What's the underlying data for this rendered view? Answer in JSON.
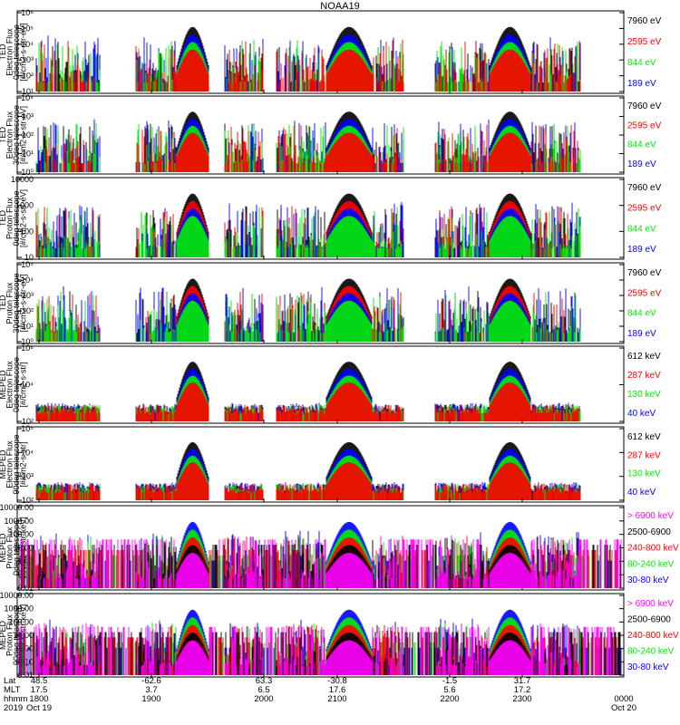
{
  "title": "NOAA19",
  "colors": {
    "black": "#000000",
    "red": "#ff0000",
    "green": "#00ee00",
    "blue": "#0000ff",
    "magenta": "#ff00ff"
  },
  "chart_data": [
    {
      "type": "scatter",
      "panel": "ted-electron-0deg",
      "ylabel": [
        "TED",
        "Electron Flux",
        "0deg telescope",
        "[#/cm2-s-str-eV]"
      ],
      "yscale": "log",
      "yticks": [
        "10¹",
        "10²",
        "10³",
        "10⁴",
        "10⁵",
        "10⁶"
      ],
      "legend": [
        {
          "name": "7960 eV",
          "color": "black"
        },
        {
          "name": "2595 eV",
          "color": "red"
        },
        {
          "name": "844 eV",
          "color": "green"
        },
        {
          "name": "189 eV",
          "color": "blue"
        }
      ]
    },
    {
      "type": "scatter",
      "panel": "ted-electron-30deg",
      "ylabel": [
        "TED",
        "Electron Flux",
        "30deg telescope",
        "[#/cm2-s-str-eV]"
      ],
      "yscale": "log",
      "yticks": [
        "10⁰",
        "10¹",
        "10²",
        "10³",
        "10⁴"
      ],
      "legend": [
        {
          "name": "7960 eV",
          "color": "black"
        },
        {
          "name": "2595 eV",
          "color": "red"
        },
        {
          "name": "844 eV",
          "color": "green"
        },
        {
          "name": "189 eV",
          "color": "blue"
        }
      ]
    },
    {
      "type": "scatter",
      "panel": "ted-proton-0deg",
      "ylabel": [
        "TED",
        "Proton Flux",
        "0deg telescope",
        "[#/cm2-s-str-eV]"
      ],
      "yscale": "log",
      "yticks": [
        "10",
        "100",
        "1000",
        "10000"
      ],
      "legend": [
        {
          "name": "7960 eV",
          "color": "black"
        },
        {
          "name": "2595 eV",
          "color": "red"
        },
        {
          "name": "844 eV",
          "color": "green"
        },
        {
          "name": "189 eV",
          "color": "blue"
        }
      ]
    },
    {
      "type": "scatter",
      "panel": "ted-proton-30deg",
      "ylabel": [
        "TED",
        "Proton Flux",
        "30deg telescope",
        "[#/cm2-s-str-eV]"
      ],
      "yscale": "log",
      "yticks": [
        "10⁰",
        "10¹",
        "10²",
        "10³",
        "10⁴",
        "10⁵"
      ],
      "legend": [
        {
          "name": "7960 eV",
          "color": "black"
        },
        {
          "name": "2595 eV",
          "color": "red"
        },
        {
          "name": "844 eV",
          "color": "green"
        },
        {
          "name": "189 eV",
          "color": "blue"
        }
      ]
    },
    {
      "type": "scatter",
      "panel": "meped-electron-0deg",
      "ylabel": [
        "MEPED",
        "Electron Flux",
        "0deg telescope",
        "[#/cm2-s-str]"
      ],
      "yscale": "log",
      "yticks": [
        "10²",
        "10⁴",
        "10⁶"
      ],
      "legend": [
        {
          "name": "612 keV",
          "color": "black"
        },
        {
          "name": "287 keV",
          "color": "red"
        },
        {
          "name": "130 keV",
          "color": "green"
        },
        {
          "name": "40 keV",
          "color": "blue"
        }
      ]
    },
    {
      "type": "scatter",
      "panel": "meped-electron-90deg",
      "ylabel": [
        "MEPED",
        "Electron Flux",
        "90deg telescope",
        "[#/cm2-s-str]"
      ],
      "yscale": "log",
      "yticks": [
        "10²",
        "10³",
        "10⁴",
        "10⁵"
      ],
      "legend": [
        {
          "name": "612 keV",
          "color": "black"
        },
        {
          "name": "287 keV",
          "color": "red"
        },
        {
          "name": "130 keV",
          "color": "green"
        },
        {
          "name": "40 keV",
          "color": "blue"
        }
      ]
    },
    {
      "type": "scatter",
      "panel": "meped-proton-0deg",
      "ylabel": [
        "MEPED",
        "Proton Flux",
        "0deg telescope",
        "[#/cm2-s-str-keV]"
      ],
      "yscale": "log",
      "yticks": [
        "0.01",
        "0.10",
        "1.00",
        "10.00",
        "100.00",
        "1000.00",
        "10000.00"
      ],
      "legend": [
        {
          "name": "> 6900 keV",
          "color": "magenta"
        },
        {
          "name": "2500-6900",
          "color": "black"
        },
        {
          "name": "240-800 keV",
          "color": "red"
        },
        {
          "name": "80-240 keV",
          "color": "green"
        },
        {
          "name": "30-80 keV",
          "color": "blue"
        }
      ]
    },
    {
      "type": "scatter",
      "panel": "meped-proton-90deg",
      "ylabel": [
        "MEPED",
        "Proton Flux",
        "90deg telescope",
        "[#/cm2-s-str-keV]"
      ],
      "yscale": "log",
      "yticks": [
        "0.01",
        "0.10",
        "1.00",
        "10.00",
        "100.00",
        "1000.00",
        "10000.00"
      ],
      "legend": [
        {
          "name": "> 6900 keV",
          "color": "magenta"
        },
        {
          "name": "2500-6900",
          "color": "black"
        },
        {
          "name": "240-800 keV",
          "color": "red"
        },
        {
          "name": "80-240 keV",
          "color": "green"
        },
        {
          "name": "30-80 keV",
          "color": "blue"
        }
      ]
    }
  ],
  "xaxis": {
    "rows": [
      {
        "label": "Lat",
        "values": [
          "48.5",
          "-62.6",
          "63.3",
          "-30.8",
          "-1.5",
          "31.7"
        ]
      },
      {
        "label": "MLT",
        "values": [
          "17.5",
          "3.7",
          "6.5",
          "17.6",
          "5.6",
          "17.2"
        ]
      },
      {
        "label": "hhmm",
        "values": [
          "1800",
          "1900",
          "2000",
          "2100",
          "2200",
          "2300",
          "0000"
        ]
      },
      {
        "label": "2019",
        "values": [
          "Oct 19",
          "",
          "",
          "",
          "",
          "",
          "Oct 20"
        ]
      }
    ]
  }
}
